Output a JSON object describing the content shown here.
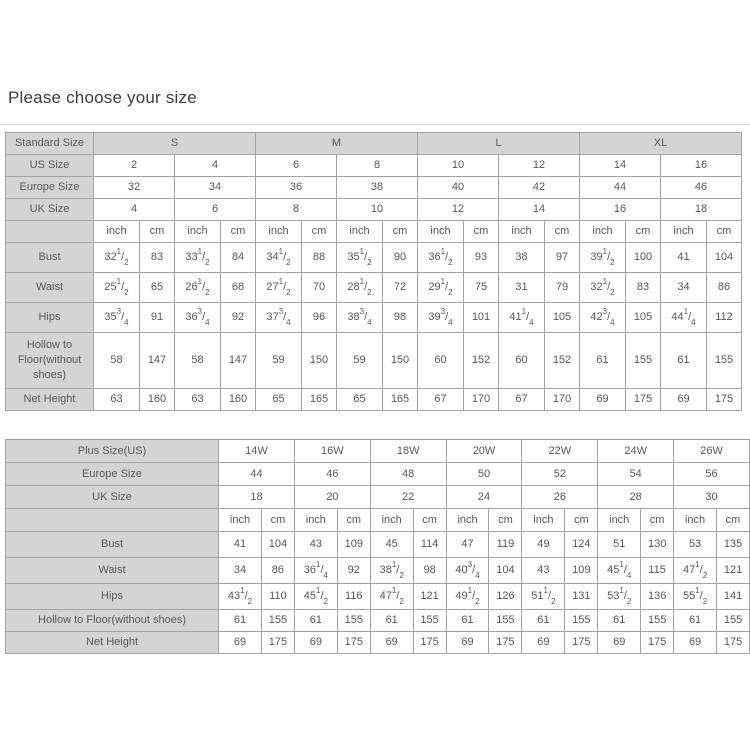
{
  "page": {
    "title": "Please choose your size"
  },
  "colors": {
    "header_bg": "#d4d4d4",
    "border": "#a3a3a3",
    "text": "#575757",
    "title_text": "#3c3c3c",
    "divider": "#dcdcdc"
  },
  "standard_table": {
    "corner_label": "Standard Size",
    "group_headers": [
      "S",
      "M",
      "L",
      "XL"
    ],
    "num_size_columns": 8,
    "units": [
      "inch",
      "cm"
    ],
    "size_rows": [
      {
        "label": "US Size",
        "values": [
          "2",
          "4",
          "6",
          "8",
          "10",
          "12",
          "14",
          "16"
        ]
      },
      {
        "label": "Europe Size",
        "values": [
          "32",
          "34",
          "36",
          "38",
          "40",
          "42",
          "44",
          "46"
        ]
      },
      {
        "label": "UK Size",
        "values": [
          "4",
          "6",
          "8",
          "10",
          "12",
          "14",
          "16",
          "18"
        ]
      }
    ],
    "measure_rows": [
      {
        "label": "Bust",
        "values": [
          "32 1/2",
          "83",
          "33 1/2",
          "84",
          "34 1/2",
          "88",
          "35 1/2",
          "90",
          "36 1/2",
          "93",
          "38",
          "97",
          "39 1/2",
          "100",
          "41",
          "104"
        ]
      },
      {
        "label": "Waist",
        "values": [
          "25 1/2",
          "65",
          "26 1/2",
          "68",
          "27 1/2",
          "70",
          "28 1/2",
          "72",
          "29 1/2",
          "75",
          "31",
          "79",
          "32 1/2",
          "83",
          "34",
          "86"
        ]
      },
      {
        "label": "Hips",
        "values": [
          "35 3/4",
          "91",
          "36 3/4",
          "92",
          "37 3/4",
          "96",
          "38 3/4",
          "98",
          "39 3/4",
          "101",
          "41 1/4",
          "105",
          "42 3/4",
          "105",
          "44 1/4",
          "112"
        ]
      },
      {
        "label": "Hollow to Floor(without shoes)",
        "values": [
          "58",
          "147",
          "58",
          "147",
          "59",
          "150",
          "59",
          "150",
          "60",
          "152",
          "60",
          "152",
          "61",
          "155",
          "61",
          "155"
        ]
      },
      {
        "label": "Net Height",
        "values": [
          "63",
          "160",
          "63",
          "160",
          "65",
          "165",
          "65",
          "165",
          "67",
          "170",
          "67",
          "170",
          "69",
          "175",
          "69",
          "175"
        ]
      }
    ]
  },
  "plus_table": {
    "num_size_columns": 7,
    "units": [
      "inch",
      "cm"
    ],
    "size_rows": [
      {
        "label": "Plus Size(US)",
        "values": [
          "14W",
          "16W",
          "18W",
          "20W",
          "22W",
          "24W",
          "26W"
        ]
      },
      {
        "label": "Europe Size",
        "values": [
          "44",
          "46",
          "48",
          "50",
          "52",
          "54",
          "56"
        ]
      },
      {
        "label": "UK Size",
        "values": [
          "18",
          "20",
          "22",
          "24",
          "26",
          "28",
          "30"
        ]
      }
    ],
    "measure_rows": [
      {
        "label": "Bust",
        "values": [
          "41",
          "104",
          "43",
          "109",
          "45",
          "114",
          "47",
          "119",
          "49",
          "124",
          "51",
          "130",
          "53",
          "135"
        ]
      },
      {
        "label": "Waist",
        "values": [
          "34",
          "86",
          "36 1/4",
          "92",
          "38 1/2",
          "98",
          "40 3/4",
          "104",
          "43",
          "109",
          "45 1/4",
          "115",
          "47 1/2",
          "121"
        ]
      },
      {
        "label": "Hips",
        "values": [
          "43 1/2",
          "110",
          "45 1/2",
          "116",
          "47 1/2",
          "121",
          "49 1/2",
          "126",
          "51 1/2",
          "131",
          "53 1/2",
          "136",
          "55 1/2",
          "141"
        ]
      },
      {
        "label": "Hollow to Floor(without shoes)",
        "values": [
          "61",
          "155",
          "61",
          "155",
          "61",
          "155",
          "61",
          "155",
          "61",
          "155",
          "61",
          "155",
          "61",
          "155"
        ]
      },
      {
        "label": "Net Height",
        "values": [
          "69",
          "175",
          "69",
          "175",
          "69",
          "175",
          "69",
          "175",
          "69",
          "175",
          "69",
          "175",
          "69",
          "175"
        ]
      }
    ]
  }
}
